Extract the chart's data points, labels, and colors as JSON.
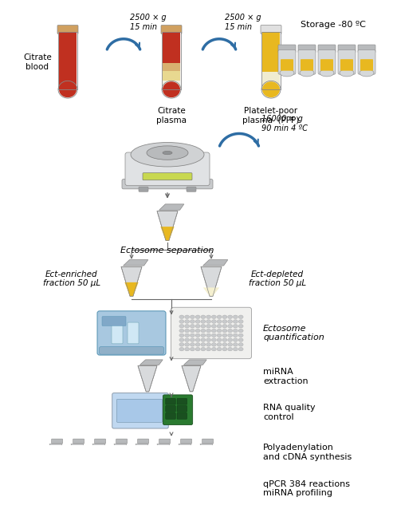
{
  "bg_color": "#ffffff",
  "arrow_color": "#2e6da4",
  "tube_outline": "#999999",
  "cap_color": "#b0b5b8",
  "body_color": "#e8eaeb",
  "yellow": "#e8b820",
  "red": "#c03020",
  "texts": {
    "citrate_blood": "Citrate\nblood",
    "centrifuge1": "2500 × g\n15 min",
    "citrate_plasma": "Citrate\nplasma",
    "centrifuge2": "2500 × g\n15 min",
    "ppp": "Platelet-poor\nplasma  (PPP)",
    "storage": "Storage -80 ºC",
    "centrifuge3": "16000 × g\n90 min 4 ºC",
    "ectosome_sep": "Ectosome separation",
    "ect_enriched": "Ect-enriched\nfraction 50 μL",
    "ect_depleted": "Ect-depleted\nfraction 50 μL",
    "ectosome_q": "Ectosome\nquantification",
    "mirna_ext": "miRNA\nextraction",
    "rna_qc": "RNA quality\ncontrol",
    "polyadenylation": "Polyadenylation\nand cDNA synthesis",
    "qpcr": "qPCR 384 reactions\nmiRNA profiling"
  }
}
